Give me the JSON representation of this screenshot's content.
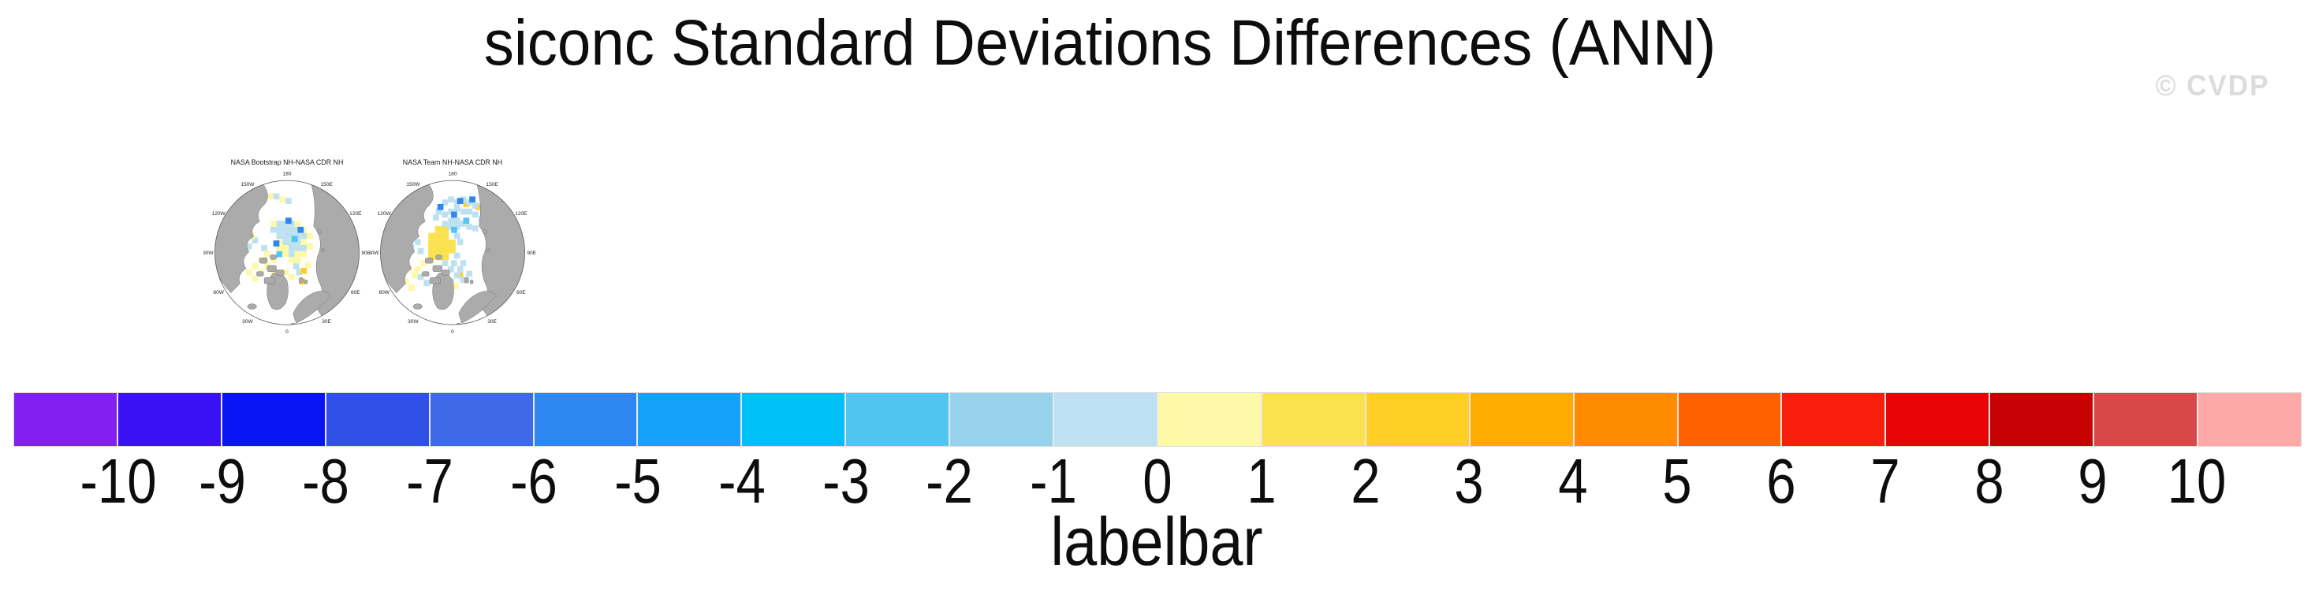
{
  "title": "siconc Standard Deviations Differences (ANN)",
  "watermark": "© CVDP",
  "panels": [
    {
      "title": "NASA Bootstrap NH-NASA CDR NH",
      "lon_labels": [
        {
          "text": "180",
          "angle": 0
        },
        {
          "text": "150E",
          "angle": 30
        },
        {
          "text": "120E",
          "angle": 60
        },
        {
          "text": "90E",
          "angle": 90
        },
        {
          "text": "60E",
          "angle": 120
        },
        {
          "text": "30E",
          "angle": 150
        },
        {
          "text": "0",
          "angle": 180
        },
        {
          "text": "30W",
          "angle": 210
        },
        {
          "text": "60W",
          "angle": 240
        },
        {
          "text": "90W",
          "angle": 270
        },
        {
          "text": "120W",
          "angle": 300
        },
        {
          "text": "150W",
          "angle": 330
        }
      ],
      "cells": [
        [
          96,
          88,
          "lb"
        ],
        [
          104,
          88,
          "lb"
        ],
        [
          112,
          88,
          "lb"
        ],
        [
          88,
          96,
          "lb"
        ],
        [
          96,
          96,
          "lb"
        ],
        [
          104,
          96,
          "lb"
        ],
        [
          112,
          96,
          "lb"
        ],
        [
          120,
          96,
          "lb"
        ],
        [
          96,
          104,
          "lb"
        ],
        [
          104,
          104,
          "lb"
        ],
        [
          112,
          104,
          "lb"
        ],
        [
          120,
          104,
          "lb"
        ],
        [
          128,
          104,
          "lb"
        ],
        [
          104,
          112,
          "lb"
        ],
        [
          112,
          112,
          "lb"
        ],
        [
          120,
          112,
          "lb"
        ],
        [
          112,
          120,
          "lb"
        ],
        [
          120,
          120,
          "lb"
        ],
        [
          128,
          120,
          "lb"
        ],
        [
          112,
          128,
          "lb"
        ],
        [
          92,
          52,
          "lb"
        ],
        [
          108,
          58,
          "lb"
        ],
        [
          56,
          118,
          "lb"
        ],
        [
          48,
          126,
          "lb"
        ],
        [
          64,
          110,
          "lb"
        ],
        [
          118,
          144,
          "lb"
        ],
        [
          122,
          152,
          "lb"
        ],
        [
          76,
          120,
          "lb"
        ],
        [
          116,
          108,
          "mb"
        ],
        [
          96,
          128,
          "mb"
        ],
        [
          88,
          88,
          "py"
        ],
        [
          120,
          88,
          "py"
        ],
        [
          128,
          96,
          "py"
        ],
        [
          136,
          104,
          "py"
        ],
        [
          128,
          112,
          "py"
        ],
        [
          136,
          118,
          "py"
        ],
        [
          96,
          112,
          "py"
        ],
        [
          104,
          120,
          "py"
        ],
        [
          96,
          120,
          "py"
        ],
        [
          104,
          128,
          "py"
        ],
        [
          120,
          128,
          "py"
        ],
        [
          128,
          128,
          "py"
        ],
        [
          112,
          136,
          "py"
        ],
        [
          120,
          136,
          "py"
        ],
        [
          80,
          128,
          "py"
        ],
        [
          72,
          136,
          "py"
        ],
        [
          64,
          144,
          "py"
        ],
        [
          72,
          152,
          "py"
        ],
        [
          80,
          144,
          "py"
        ],
        [
          88,
          136,
          "py"
        ],
        [
          56,
          152,
          "py"
        ],
        [
          64,
          160,
          "py"
        ],
        [
          88,
          152,
          "py"
        ],
        [
          84,
          52,
          "py"
        ],
        [
          100,
          56,
          "py"
        ],
        [
          76,
          56,
          "py"
        ],
        [
          134,
          142,
          "py"
        ],
        [
          104,
          152,
          "py"
        ],
        [
          96,
          160,
          "py"
        ],
        [
          112,
          158,
          "py"
        ],
        [
          60,
          104,
          "py"
        ],
        [
          44,
          140,
          "py"
        ],
        [
          108,
          84,
          "db"
        ],
        [
          92,
          114,
          "db"
        ],
        [
          124,
          96,
          "db"
        ],
        [
          128,
          150,
          "gy"
        ],
        [
          126,
          164,
          "gy"
        ]
      ]
    },
    {
      "title": "NASA Team NH-NASA CDR NH",
      "lon_labels": [
        {
          "text": "180",
          "angle": 0
        },
        {
          "text": "150E",
          "angle": 30
        },
        {
          "text": "120E",
          "angle": 60
        },
        {
          "text": "90E",
          "angle": 90
        },
        {
          "text": "60E",
          "angle": 120
        },
        {
          "text": "30E",
          "angle": 150
        },
        {
          "text": "0",
          "angle": 180
        },
        {
          "text": "30W",
          "angle": 210
        },
        {
          "text": "60W",
          "angle": 240
        },
        {
          "text": "90W",
          "angle": 270
        },
        {
          "text": "120W",
          "angle": 300
        },
        {
          "text": "150W",
          "angle": 330
        }
      ],
      "cells": [
        [
          78,
          104,
          "yy"
        ],
        [
          87,
          104,
          "yy"
        ],
        [
          96,
          104,
          "yy"
        ],
        [
          78,
          113,
          "yy"
        ],
        [
          87,
          113,
          "yy"
        ],
        [
          96,
          113,
          "yy"
        ],
        [
          105,
          113,
          "yy"
        ],
        [
          78,
          122,
          "yy"
        ],
        [
          87,
          122,
          "yy"
        ],
        [
          96,
          122,
          "yy"
        ],
        [
          105,
          122,
          "yy"
        ],
        [
          87,
          131,
          "yy"
        ],
        [
          96,
          131,
          "yy"
        ],
        [
          78,
          131,
          "yy"
        ],
        [
          87,
          95,
          "yy"
        ],
        [
          96,
          95,
          "yy"
        ],
        [
          140,
          66,
          "gy"
        ],
        [
          150,
          88,
          "gy"
        ],
        [
          124,
          62,
          "gy"
        ],
        [
          116,
          156,
          "gy"
        ],
        [
          96,
          60,
          "lb"
        ],
        [
          104,
          56,
          "lb"
        ],
        [
          112,
          60,
          "lb"
        ],
        [
          120,
          56,
          "lb"
        ],
        [
          128,
          60,
          "lb"
        ],
        [
          136,
          64,
          "lb"
        ],
        [
          112,
          68,
          "lb"
        ],
        [
          104,
          72,
          "lb"
        ],
        [
          120,
          72,
          "lb"
        ],
        [
          128,
          72,
          "lb"
        ],
        [
          88,
          72,
          "lb"
        ],
        [
          96,
          76,
          "lb"
        ],
        [
          136,
          76,
          "lb"
        ],
        [
          144,
          82,
          "lb"
        ],
        [
          104,
          84,
          "lb"
        ],
        [
          112,
          84,
          "lb"
        ],
        [
          120,
          88,
          "lb"
        ],
        [
          128,
          92,
          "lb"
        ],
        [
          136,
          94,
          "lb"
        ],
        [
          112,
          92,
          "lb"
        ],
        [
          104,
          92,
          "lb"
        ],
        [
          96,
          88,
          "lb"
        ],
        [
          112,
          104,
          "lb"
        ],
        [
          116,
          112,
          "lb"
        ],
        [
          112,
          130,
          "lb"
        ],
        [
          108,
          140,
          "lb"
        ],
        [
          116,
          148,
          "lb"
        ],
        [
          104,
          148,
          "lb"
        ],
        [
          96,
          140,
          "lb"
        ],
        [
          120,
          140,
          "lb"
        ],
        [
          112,
          156,
          "lb"
        ],
        [
          104,
          164,
          "lb"
        ],
        [
          120,
          162,
          "lb"
        ],
        [
          96,
          170,
          "lb"
        ],
        [
          128,
          154,
          "lb"
        ],
        [
          56,
          100,
          "lb"
        ],
        [
          48,
          108,
          "lb"
        ],
        [
          60,
          112,
          "lb"
        ],
        [
          52,
          120,
          "lb"
        ],
        [
          64,
          124,
          "lb"
        ],
        [
          44,
          116,
          "lb"
        ],
        [
          64,
          158,
          "lb"
        ],
        [
          72,
          166,
          "lb"
        ],
        [
          84,
          80,
          "lb"
        ],
        [
          108,
          96,
          "mb"
        ],
        [
          124,
          84,
          "mb"
        ],
        [
          116,
          58,
          "db"
        ],
        [
          132,
          56,
          "db"
        ],
        [
          90,
          66,
          "db"
        ],
        [
          108,
          76,
          "db"
        ],
        [
          48,
          148,
          "py"
        ],
        [
          56,
          156,
          "py"
        ],
        [
          44,
          164,
          "py"
        ],
        [
          52,
          172,
          "py"
        ],
        [
          60,
          148,
          "py"
        ],
        [
          110,
          170,
          "py"
        ],
        [
          68,
          140,
          "py"
        ],
        [
          40,
          130,
          "py"
        ]
      ]
    }
  ],
  "colorbar": {
    "label": "labelbar",
    "tick_labels": [
      "-10",
      "-9",
      "-8",
      "-7",
      "-6",
      "-5",
      "-4",
      "-3",
      "-2",
      "-1",
      "0",
      "1",
      "2",
      "3",
      "4",
      "5",
      "6",
      "7",
      "8",
      "9",
      "10"
    ],
    "colors": [
      "#8220F0",
      "#3A10F4",
      "#0814F2",
      "#3050E8",
      "#3E6AE8",
      "#2E86F0",
      "#14A2FA",
      "#00C0F8",
      "#50C5F0",
      "#96D2EC",
      "#BEE1F2",
      "#FDF9A8",
      "#FCE14E",
      "#FFCE26",
      "#FFAB00",
      "#FF8C00",
      "#FF6000",
      "#F81E0E",
      "#E60404",
      "#C80202",
      "#D84848",
      "#FFA8A8"
    ],
    "patch_colors": {
      "lb": "#BEE1F2",
      "mb": "#52C5F2",
      "db": "#2E86F0",
      "py": "#FDF9A8",
      "yy": "#FCE14E",
      "gy": "#FFCE26"
    }
  },
  "map_style": {
    "land_color": "#ABABAB",
    "coast_color": "#6E6E6E",
    "circle_color": "#555555",
    "ocean_color": "#FFFFFF"
  },
  "chart_data": {
    "type": "heatmap",
    "title": "siconc Standard Deviations Differences (ANN)",
    "panels": [
      {
        "title": "NASA Bootstrap NH-NASA CDR NH",
        "projection": "north polar stereographic",
        "description": "Sea-ice concentration standard-deviation difference; scattered weak negative (light blue, ~ -1 to -2) patch over central Arctic with pale-yellow (~ +1) fringe toward Canadian Archipelago, Bering and Barents sectors; small gold (+2 to +3) spots near Svalbard"
      },
      {
        "title": "NASA Team NH-NASA CDR NH",
        "projection": "north polar stereographic",
        "description": "Yellow positive blob (~ +1 to +2) centered near the pole on the Canadian side; light blue (~ -1) band along the Siberian shelf seas, Fram Strait, Baffin Bay and Barents Sea; isolated gold (+2) and deeper blue (-3) grid cells"
      }
    ],
    "colorbar": {
      "label": "labelbar",
      "orientation": "horizontal",
      "levels": [
        -10,
        -9,
        -8,
        -7,
        -6,
        -5,
        -4,
        -3,
        -2,
        -1,
        0,
        1,
        2,
        3,
        4,
        5,
        6,
        7,
        8,
        9,
        10
      ],
      "colors": [
        "#8220F0",
        "#3A10F4",
        "#0814F2",
        "#3050E8",
        "#3E6AE8",
        "#2E86F0",
        "#14A2FA",
        "#00C0F8",
        "#50C5F0",
        "#96D2EC",
        "#BEE1F2",
        "#FDF9A8",
        "#FCE14E",
        "#FFCE26",
        "#FFAB00",
        "#FF8C00",
        "#FF6000",
        "#F81E0E",
        "#E60404",
        "#C80202",
        "#D84848",
        "#FFA8A8"
      ]
    }
  }
}
